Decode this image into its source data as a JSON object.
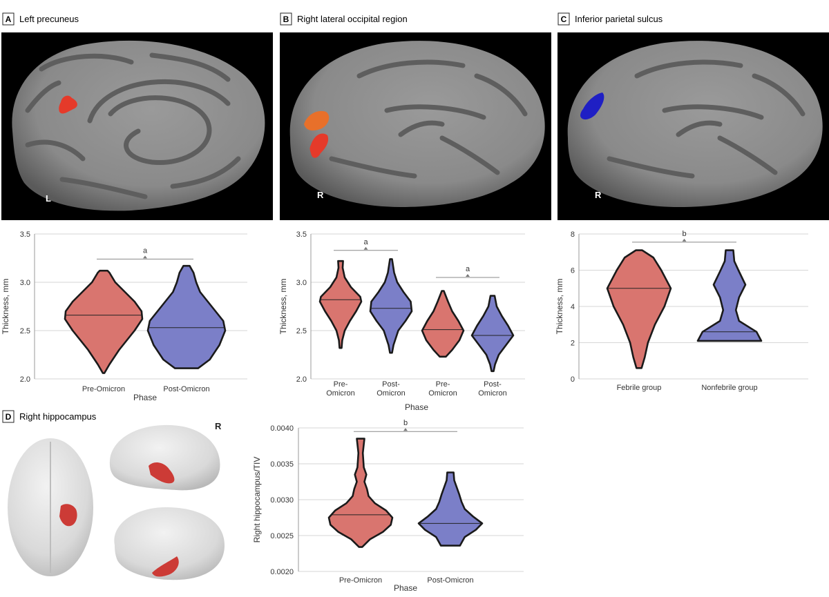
{
  "panels": [
    {
      "letter": "A",
      "title": "Left precuneus",
      "side": "L"
    },
    {
      "letter": "B",
      "title": "Right lateral occipital region",
      "side": "R"
    },
    {
      "letter": "C",
      "title": "Inferior parietal sulcus",
      "side": "R"
    },
    {
      "letter": "D",
      "title": "Right hippocampus",
      "side": "R"
    }
  ],
  "colors": {
    "pre": "#d9756f",
    "post": "#7b7fc8",
    "outline": "#1a1a1a",
    "highlight_red": "#e53a2a",
    "highlight_orange": "#e8702a",
    "highlight_blue": "#1f1fc4",
    "brain_light": "#8f8f8f",
    "brain_dark": "#5c5c5c"
  },
  "chart_data": [
    {
      "id": "A",
      "type": "violin",
      "xlabel": "Phase",
      "ylabel": "Thickness, mm",
      "ylim": [
        2.0,
        3.5
      ],
      "yticks": [
        "2.0",
        "2.5",
        "3.0",
        "3.5"
      ],
      "categories": [
        {
          "label": [
            "Pre-Omicron"
          ],
          "group": "pre",
          "min": 2.06,
          "max": 3.12,
          "median": 2.66,
          "profile": [
            [
              2.06,
              0.02
            ],
            [
              2.15,
              0.15
            ],
            [
              2.3,
              0.4
            ],
            [
              2.5,
              0.8
            ],
            [
              2.62,
              1.0
            ],
            [
              2.7,
              0.98
            ],
            [
              2.8,
              0.8
            ],
            [
              2.9,
              0.55
            ],
            [
              3.0,
              0.3
            ],
            [
              3.1,
              0.15
            ],
            [
              3.12,
              0.1
            ]
          ]
        },
        {
          "label": [
            "Post-Omicron"
          ],
          "group": "post",
          "min": 2.11,
          "max": 3.17,
          "median": 2.53,
          "profile": [
            [
              2.11,
              0.3
            ],
            [
              2.2,
              0.6
            ],
            [
              2.35,
              0.85
            ],
            [
              2.5,
              1.0
            ],
            [
              2.6,
              0.95
            ],
            [
              2.7,
              0.75
            ],
            [
              2.8,
              0.55
            ],
            [
              2.9,
              0.35
            ],
            [
              3.0,
              0.25
            ],
            [
              3.1,
              0.18
            ],
            [
              3.17,
              0.08
            ]
          ]
        }
      ],
      "significance": [
        {
          "from": 0,
          "to": 1,
          "y": 3.24,
          "label": "a"
        }
      ]
    },
    {
      "id": "B",
      "type": "violin",
      "xlabel": "Phase",
      "ylabel": "Thickness, mm",
      "ylim": [
        2.0,
        3.5
      ],
      "yticks": [
        "2.0",
        "2.5",
        "3.0",
        "3.5"
      ],
      "categories": [
        {
          "label": [
            "Pre-",
            "Omicron"
          ],
          "group": "pre",
          "min": 2.32,
          "max": 3.22,
          "median": 2.82,
          "profile": [
            [
              2.32,
              0.05
            ],
            [
              2.4,
              0.08
            ],
            [
              2.5,
              0.2
            ],
            [
              2.6,
              0.45
            ],
            [
              2.7,
              0.75
            ],
            [
              2.8,
              1.0
            ],
            [
              2.85,
              0.95
            ],
            [
              2.95,
              0.5
            ],
            [
              3.05,
              0.2
            ],
            [
              3.15,
              0.1
            ],
            [
              3.22,
              0.12
            ]
          ]
        },
        {
          "label": [
            "Post-",
            "Omicron"
          ],
          "group": "post",
          "min": 2.27,
          "max": 3.24,
          "median": 2.73,
          "profile": [
            [
              2.27,
              0.05
            ],
            [
              2.35,
              0.12
            ],
            [
              2.5,
              0.35
            ],
            [
              2.6,
              0.7
            ],
            [
              2.7,
              1.0
            ],
            [
              2.8,
              0.95
            ],
            [
              2.9,
              0.6
            ],
            [
              3.0,
              0.3
            ],
            [
              3.1,
              0.15
            ],
            [
              3.24,
              0.05
            ]
          ]
        },
        {
          "label": [
            "Pre-",
            "Omicron"
          ],
          "group": "pre",
          "min": 2.23,
          "max": 2.91,
          "median": 2.51,
          "profile": [
            [
              2.23,
              0.15
            ],
            [
              2.3,
              0.45
            ],
            [
              2.4,
              0.8
            ],
            [
              2.5,
              1.0
            ],
            [
              2.6,
              0.75
            ],
            [
              2.7,
              0.45
            ],
            [
              2.8,
              0.25
            ],
            [
              2.91,
              0.05
            ]
          ]
        },
        {
          "label": [
            "Post-",
            "Omicron"
          ],
          "group": "post",
          "min": 2.08,
          "max": 2.86,
          "median": 2.45,
          "profile": [
            [
              2.08,
              0.05
            ],
            [
              2.15,
              0.12
            ],
            [
              2.25,
              0.3
            ],
            [
              2.35,
              0.65
            ],
            [
              2.45,
              1.0
            ],
            [
              2.55,
              0.75
            ],
            [
              2.65,
              0.45
            ],
            [
              2.75,
              0.2
            ],
            [
              2.86,
              0.1
            ]
          ]
        }
      ],
      "significance": [
        {
          "from": 0,
          "to": 1,
          "y": 3.33,
          "label": "a"
        },
        {
          "from": 2,
          "to": 3,
          "y": 3.05,
          "label": "a"
        }
      ]
    },
    {
      "id": "C",
      "type": "violin",
      "xlabel": "",
      "ylabel": "Thickness, mm",
      "ylim": [
        0,
        8
      ],
      "yticks": [
        "0",
        "2",
        "4",
        "6",
        "8"
      ],
      "categories": [
        {
          "label": [
            "Febrile group"
          ],
          "group": "pre",
          "min": 0.6,
          "max": 7.1,
          "median": 5.0,
          "profile": [
            [
              0.6,
              0.08
            ],
            [
              1.2,
              0.18
            ],
            [
              2.0,
              0.28
            ],
            [
              3.0,
              0.5
            ],
            [
              4.0,
              0.8
            ],
            [
              5.0,
              1.0
            ],
            [
              6.0,
              0.7
            ],
            [
              6.7,
              0.45
            ],
            [
              7.1,
              0.1
            ]
          ]
        },
        {
          "label": [
            "Nonfebrile group"
          ],
          "group": "post",
          "min": 2.1,
          "max": 7.1,
          "median": 2.6,
          "profile": [
            [
              2.1,
              1.0
            ],
            [
              2.6,
              0.85
            ],
            [
              3.2,
              0.3
            ],
            [
              3.8,
              0.2
            ],
            [
              4.5,
              0.3
            ],
            [
              5.2,
              0.5
            ],
            [
              6.0,
              0.28
            ],
            [
              6.5,
              0.15
            ],
            [
              7.1,
              0.12
            ]
          ]
        }
      ],
      "significance": [
        {
          "from": 0,
          "to": 1,
          "y": 7.55,
          "label": "b"
        }
      ]
    },
    {
      "id": "D",
      "type": "violin",
      "xlabel": "Phase",
      "ylabel": "Right hippocampus/TIV",
      "ylim": [
        0.002,
        0.004
      ],
      "yticks": [
        "0.0020",
        "0.0025",
        "0.0030",
        "0.0035",
        "0.0040"
      ],
      "categories": [
        {
          "label": [
            "Pre-Omicron"
          ],
          "group": "pre",
          "min": 0.00234,
          "max": 0.00385,
          "median": 0.00279,
          "profile": [
            [
              0.00234,
              0.05
            ],
            [
              0.00245,
              0.3
            ],
            [
              0.00255,
              0.7
            ],
            [
              0.00265,
              0.95
            ],
            [
              0.00275,
              1.0
            ],
            [
              0.00285,
              0.8
            ],
            [
              0.00295,
              0.45
            ],
            [
              0.00305,
              0.25
            ],
            [
              0.00315,
              0.2
            ],
            [
              0.00325,
              0.12
            ],
            [
              0.00335,
              0.18
            ],
            [
              0.00345,
              0.1
            ],
            [
              0.00365,
              0.07
            ],
            [
              0.00385,
              0.12
            ]
          ]
        },
        {
          "label": [
            "Post-Omicron"
          ],
          "group": "post",
          "min": 0.00236,
          "max": 0.00338,
          "median": 0.00267,
          "profile": [
            [
              0.00236,
              0.3
            ],
            [
              0.00248,
              0.45
            ],
            [
              0.00258,
              0.8
            ],
            [
              0.00267,
              1.0
            ],
            [
              0.00277,
              0.7
            ],
            [
              0.00287,
              0.45
            ],
            [
              0.00297,
              0.35
            ],
            [
              0.00307,
              0.28
            ],
            [
              0.00317,
              0.2
            ],
            [
              0.00327,
              0.12
            ],
            [
              0.00338,
              0.1
            ]
          ]
        }
      ],
      "significance": [
        {
          "from": 0,
          "to": 1,
          "y": 0.00395,
          "label": "b"
        }
      ]
    }
  ]
}
